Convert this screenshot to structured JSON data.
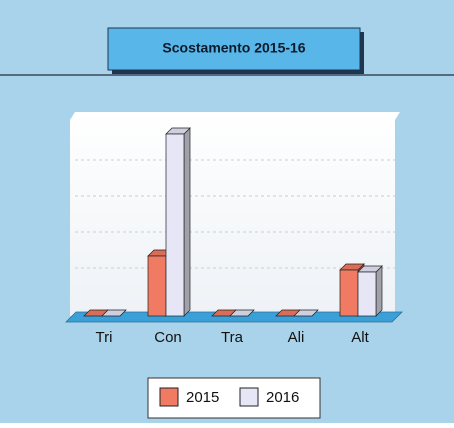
{
  "chart_data": {
    "type": "bar3d",
    "title": "Scostamento 2015-16",
    "categories": [
      "Tri",
      "Con",
      "Tra",
      "Ali",
      "Alt"
    ],
    "series": [
      {
        "name": "2015",
        "color": "#f07a62",
        "values": [
          0,
          30,
          0,
          0,
          23
        ]
      },
      {
        "name": "2016",
        "color": "#e6e6f6",
        "values": [
          0,
          91,
          0,
          0,
          22
        ]
      }
    ],
    "ylim": [
      0,
      100
    ],
    "grid": true
  }
}
